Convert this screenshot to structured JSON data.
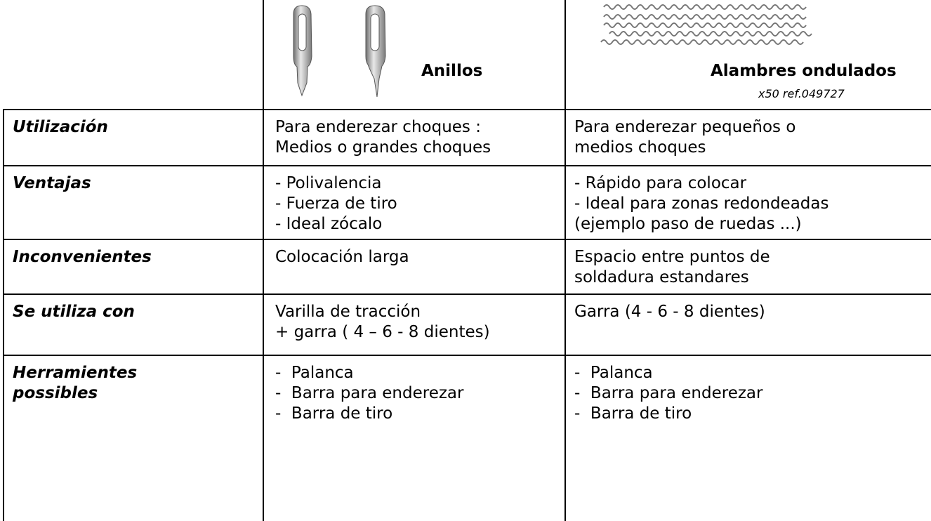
{
  "header": {
    "columns": [
      {
        "title": "Anillos"
      },
      {
        "title": "Alambres ondulados",
        "subtitle": "x50 ref.049727"
      }
    ]
  },
  "table": {
    "rows": [
      {
        "label": [
          "Utilización"
        ],
        "cells": [
          [
            "Para enderezar choques :",
            "Medios o grandes choques"
          ],
          [
            "Para enderezar pequeños o",
            "medios choques"
          ]
        ]
      },
      {
        "label": [
          "Ventajas"
        ],
        "cells": [
          [
            "- Polivalencia",
            "- Fuerza de tiro",
            "- Ideal zócalo"
          ],
          [
            "- Rápido para colocar",
            "- Ideal para zonas redondeadas",
            "(ejemplo paso de ruedas ...)"
          ]
        ]
      },
      {
        "label": [
          "Inconvenientes"
        ],
        "cells": [
          [
            "Colocación larga"
          ],
          [
            "Espacio entre puntos de",
            "soldadura estandares"
          ]
        ]
      },
      {
        "label": [
          "Se utiliza con"
        ],
        "cells": [
          [
            "Varilla de tracción",
            "+ garra ( 4 – 6 - 8 dientes)"
          ],
          [
            "Garra (4 - 6 - 8 dientes)"
          ]
        ]
      },
      {
        "label": [
          "Herramientes",
          "possibles"
        ],
        "cells": [
          [
            "-  Palanca",
            "-  Barra para enderezar",
            "-  Barra de tiro"
          ],
          [
            "-  Palanca",
            "-  Barra para enderezar",
            "-  Barra de tiro"
          ]
        ]
      }
    ]
  }
}
